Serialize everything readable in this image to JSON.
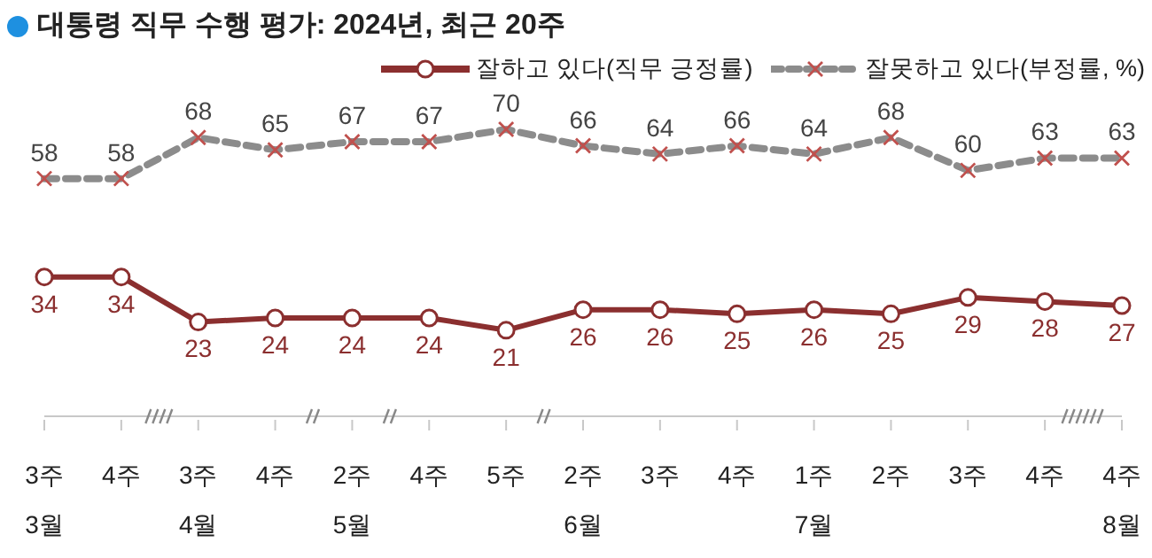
{
  "chart_data": {
    "type": "line",
    "title": "대통령 직무 수행 평가: 2024년, 최근 20주",
    "categories": [
      "3주\n3월",
      "4주",
      "3주\n4월",
      "4주",
      "2주\n5월",
      "4주",
      "5주",
      "2주\n6월",
      "3주",
      "4주",
      "1주\n7월",
      "2주",
      "3주",
      "4주",
      "4주\n8월"
    ],
    "series": [
      {
        "name": "잘하고 있다(직무 긍정률)",
        "color": "#8b2f2f",
        "marker": "circle",
        "line_style": "solid",
        "values": [
          34,
          34,
          23,
          24,
          24,
          24,
          21,
          26,
          26,
          25,
          26,
          25,
          29,
          28,
          27
        ]
      },
      {
        "name": "잘못하고 있다(부정률, %)",
        "color": "#8c8c8c",
        "marker": "cross",
        "line_style": "dashed",
        "values": [
          58,
          58,
          68,
          65,
          67,
          67,
          70,
          66,
          64,
          66,
          64,
          68,
          60,
          63,
          63
        ]
      }
    ],
    "data_labels": true,
    "legend": "top right"
  }
}
